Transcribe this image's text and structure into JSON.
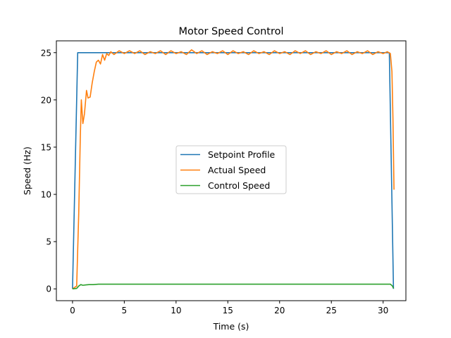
{
  "chart_data": {
    "type": "line",
    "title": "Motor Speed Control",
    "xlabel": "Time (s)",
    "ylabel": "Speed (Hz)",
    "xlim": [
      -1.56,
      32.2
    ],
    "ylim": [
      -1.25,
      26.25
    ],
    "xticks": [
      0,
      5,
      10,
      15,
      20,
      25,
      30
    ],
    "yticks": [
      0,
      5,
      10,
      15,
      20,
      25
    ],
    "xtick_labels": [
      "0",
      "5",
      "10",
      "15",
      "20",
      "25",
      "30"
    ],
    "ytick_labels": [
      "0",
      "5",
      "10",
      "15",
      "20",
      "25"
    ],
    "grid": false,
    "legend_position": "center",
    "series": [
      {
        "name": "Setpoint Profile",
        "color": "#1f77b4",
        "points": [
          [
            0,
            0
          ],
          [
            0.5,
            25
          ],
          [
            30.6,
            25
          ],
          [
            31.0,
            0
          ]
        ]
      },
      {
        "name": "Actual Speed",
        "color": "#ff7f0e",
        "points": [
          [
            0,
            0
          ],
          [
            0.4,
            0.3
          ],
          [
            0.6,
            8
          ],
          [
            0.75,
            16
          ],
          [
            0.85,
            20
          ],
          [
            1.0,
            17.5
          ],
          [
            1.15,
            18.5
          ],
          [
            1.35,
            21
          ],
          [
            1.5,
            20.2
          ],
          [
            1.7,
            20.3
          ],
          [
            1.9,
            21.8
          ],
          [
            2.1,
            23
          ],
          [
            2.3,
            24
          ],
          [
            2.5,
            24.2
          ],
          [
            2.7,
            23.8
          ],
          [
            2.9,
            24.8
          ],
          [
            3.1,
            24.2
          ],
          [
            3.3,
            24.9
          ],
          [
            3.5,
            24.7
          ],
          [
            3.7,
            25.1
          ],
          [
            4.0,
            24.8
          ],
          [
            4.5,
            25.2
          ],
          [
            5.0,
            24.9
          ],
          [
            5.5,
            25.2
          ],
          [
            6.0,
            24.9
          ],
          [
            6.5,
            25.2
          ],
          [
            7.0,
            24.8
          ],
          [
            7.5,
            25.1
          ],
          [
            8.0,
            24.9
          ],
          [
            8.5,
            25.2
          ],
          [
            9.0,
            24.8
          ],
          [
            9.5,
            25.2
          ],
          [
            10.0,
            24.9
          ],
          [
            10.5,
            25.1
          ],
          [
            11.0,
            24.8
          ],
          [
            11.5,
            25.3
          ],
          [
            12.0,
            24.9
          ],
          [
            12.5,
            25.2
          ],
          [
            13.0,
            24.8
          ],
          [
            13.5,
            25.1
          ],
          [
            14.0,
            24.9
          ],
          [
            14.5,
            25.2
          ],
          [
            15.0,
            24.8
          ],
          [
            15.5,
            25.2
          ],
          [
            16.0,
            24.9
          ],
          [
            16.5,
            25.1
          ],
          [
            17.0,
            24.8
          ],
          [
            17.5,
            25.2
          ],
          [
            18.0,
            24.9
          ],
          [
            18.5,
            25.1
          ],
          [
            19.0,
            24.8
          ],
          [
            19.5,
            25.2
          ],
          [
            20.0,
            24.9
          ],
          [
            20.5,
            25.1
          ],
          [
            21.0,
            24.8
          ],
          [
            21.5,
            25.2
          ],
          [
            22.0,
            24.9
          ],
          [
            22.5,
            25.2
          ],
          [
            23.0,
            24.8
          ],
          [
            23.5,
            25.1
          ],
          [
            24.0,
            24.9
          ],
          [
            24.5,
            25.2
          ],
          [
            25.0,
            24.8
          ],
          [
            25.5,
            25.1
          ],
          [
            26.0,
            24.9
          ],
          [
            26.5,
            25.2
          ],
          [
            27.0,
            24.8
          ],
          [
            27.5,
            25.1
          ],
          [
            28.0,
            24.9
          ],
          [
            28.5,
            25.2
          ],
          [
            29.0,
            24.8
          ],
          [
            29.5,
            25.1
          ],
          [
            30.0,
            24.9
          ],
          [
            30.4,
            25.1
          ],
          [
            30.7,
            24.9
          ],
          [
            30.85,
            23
          ],
          [
            30.95,
            18
          ],
          [
            31.05,
            10.5
          ]
        ]
      },
      {
        "name": "Control Speed",
        "color": "#2ca02c",
        "points": [
          [
            0,
            0
          ],
          [
            0.4,
            0.05
          ],
          [
            0.6,
            0.3
          ],
          [
            0.8,
            0.45
          ],
          [
            1.0,
            0.38
          ],
          [
            1.3,
            0.42
          ],
          [
            1.6,
            0.45
          ],
          [
            2.0,
            0.45
          ],
          [
            2.5,
            0.5
          ],
          [
            3.0,
            0.5
          ],
          [
            5.0,
            0.5
          ],
          [
            10.0,
            0.5
          ],
          [
            15.0,
            0.5
          ],
          [
            20.0,
            0.5
          ],
          [
            25.0,
            0.5
          ],
          [
            30.0,
            0.5
          ],
          [
            30.7,
            0.5
          ],
          [
            30.9,
            0.3
          ],
          [
            31.0,
            0.05
          ]
        ]
      }
    ]
  }
}
